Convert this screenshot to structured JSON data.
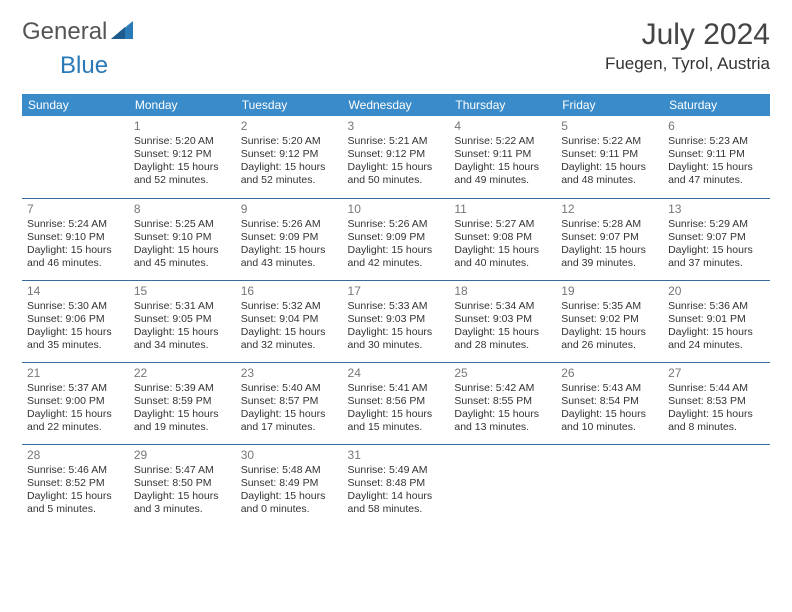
{
  "logo": {
    "text1": "General",
    "text2": "Blue"
  },
  "header": {
    "title": "July 2024",
    "location": "Fuegen, Tyrol, Austria"
  },
  "colors": {
    "header_bg": "#3a8bc9",
    "header_text": "#ffffff",
    "row_border": "#3a6a9e",
    "title_color": "#444444",
    "body_text": "#333333",
    "daynum_color": "#777777",
    "logo_g": "#555555",
    "logo_b": "#2a7ab8"
  },
  "typography": {
    "title_fontsize": 30,
    "location_fontsize": 17,
    "dayhead_fontsize": 12,
    "cell_fontsize": 10.5,
    "daynum_fontsize": 12,
    "font_family": "Arial"
  },
  "dayHeaders": [
    "Sunday",
    "Monday",
    "Tuesday",
    "Wednesday",
    "Thursday",
    "Friday",
    "Saturday"
  ],
  "weeks": [
    [
      null,
      {
        "n": "1",
        "sr": "Sunrise: 5:20 AM",
        "ss": "Sunset: 9:12 PM",
        "dl": "Daylight: 15 hours and 52 minutes."
      },
      {
        "n": "2",
        "sr": "Sunrise: 5:20 AM",
        "ss": "Sunset: 9:12 PM",
        "dl": "Daylight: 15 hours and 52 minutes."
      },
      {
        "n": "3",
        "sr": "Sunrise: 5:21 AM",
        "ss": "Sunset: 9:12 PM",
        "dl": "Daylight: 15 hours and 50 minutes."
      },
      {
        "n": "4",
        "sr": "Sunrise: 5:22 AM",
        "ss": "Sunset: 9:11 PM",
        "dl": "Daylight: 15 hours and 49 minutes."
      },
      {
        "n": "5",
        "sr": "Sunrise: 5:22 AM",
        "ss": "Sunset: 9:11 PM",
        "dl": "Daylight: 15 hours and 48 minutes."
      },
      {
        "n": "6",
        "sr": "Sunrise: 5:23 AM",
        "ss": "Sunset: 9:11 PM",
        "dl": "Daylight: 15 hours and 47 minutes."
      }
    ],
    [
      {
        "n": "7",
        "sr": "Sunrise: 5:24 AM",
        "ss": "Sunset: 9:10 PM",
        "dl": "Daylight: 15 hours and 46 minutes."
      },
      {
        "n": "8",
        "sr": "Sunrise: 5:25 AM",
        "ss": "Sunset: 9:10 PM",
        "dl": "Daylight: 15 hours and 45 minutes."
      },
      {
        "n": "9",
        "sr": "Sunrise: 5:26 AM",
        "ss": "Sunset: 9:09 PM",
        "dl": "Daylight: 15 hours and 43 minutes."
      },
      {
        "n": "10",
        "sr": "Sunrise: 5:26 AM",
        "ss": "Sunset: 9:09 PM",
        "dl": "Daylight: 15 hours and 42 minutes."
      },
      {
        "n": "11",
        "sr": "Sunrise: 5:27 AM",
        "ss": "Sunset: 9:08 PM",
        "dl": "Daylight: 15 hours and 40 minutes."
      },
      {
        "n": "12",
        "sr": "Sunrise: 5:28 AM",
        "ss": "Sunset: 9:07 PM",
        "dl": "Daylight: 15 hours and 39 minutes."
      },
      {
        "n": "13",
        "sr": "Sunrise: 5:29 AM",
        "ss": "Sunset: 9:07 PM",
        "dl": "Daylight: 15 hours and 37 minutes."
      }
    ],
    [
      {
        "n": "14",
        "sr": "Sunrise: 5:30 AM",
        "ss": "Sunset: 9:06 PM",
        "dl": "Daylight: 15 hours and 35 minutes."
      },
      {
        "n": "15",
        "sr": "Sunrise: 5:31 AM",
        "ss": "Sunset: 9:05 PM",
        "dl": "Daylight: 15 hours and 34 minutes."
      },
      {
        "n": "16",
        "sr": "Sunrise: 5:32 AM",
        "ss": "Sunset: 9:04 PM",
        "dl": "Daylight: 15 hours and 32 minutes."
      },
      {
        "n": "17",
        "sr": "Sunrise: 5:33 AM",
        "ss": "Sunset: 9:03 PM",
        "dl": "Daylight: 15 hours and 30 minutes."
      },
      {
        "n": "18",
        "sr": "Sunrise: 5:34 AM",
        "ss": "Sunset: 9:03 PM",
        "dl": "Daylight: 15 hours and 28 minutes."
      },
      {
        "n": "19",
        "sr": "Sunrise: 5:35 AM",
        "ss": "Sunset: 9:02 PM",
        "dl": "Daylight: 15 hours and 26 minutes."
      },
      {
        "n": "20",
        "sr": "Sunrise: 5:36 AM",
        "ss": "Sunset: 9:01 PM",
        "dl": "Daylight: 15 hours and 24 minutes."
      }
    ],
    [
      {
        "n": "21",
        "sr": "Sunrise: 5:37 AM",
        "ss": "Sunset: 9:00 PM",
        "dl": "Daylight: 15 hours and 22 minutes."
      },
      {
        "n": "22",
        "sr": "Sunrise: 5:39 AM",
        "ss": "Sunset: 8:59 PM",
        "dl": "Daylight: 15 hours and 19 minutes."
      },
      {
        "n": "23",
        "sr": "Sunrise: 5:40 AM",
        "ss": "Sunset: 8:57 PM",
        "dl": "Daylight: 15 hours and 17 minutes."
      },
      {
        "n": "24",
        "sr": "Sunrise: 5:41 AM",
        "ss": "Sunset: 8:56 PM",
        "dl": "Daylight: 15 hours and 15 minutes."
      },
      {
        "n": "25",
        "sr": "Sunrise: 5:42 AM",
        "ss": "Sunset: 8:55 PM",
        "dl": "Daylight: 15 hours and 13 minutes."
      },
      {
        "n": "26",
        "sr": "Sunrise: 5:43 AM",
        "ss": "Sunset: 8:54 PM",
        "dl": "Daylight: 15 hours and 10 minutes."
      },
      {
        "n": "27",
        "sr": "Sunrise: 5:44 AM",
        "ss": "Sunset: 8:53 PM",
        "dl": "Daylight: 15 hours and 8 minutes."
      }
    ],
    [
      {
        "n": "28",
        "sr": "Sunrise: 5:46 AM",
        "ss": "Sunset: 8:52 PM",
        "dl": "Daylight: 15 hours and 5 minutes."
      },
      {
        "n": "29",
        "sr": "Sunrise: 5:47 AM",
        "ss": "Sunset: 8:50 PM",
        "dl": "Daylight: 15 hours and 3 minutes."
      },
      {
        "n": "30",
        "sr": "Sunrise: 5:48 AM",
        "ss": "Sunset: 8:49 PM",
        "dl": "Daylight: 15 hours and 0 minutes."
      },
      {
        "n": "31",
        "sr": "Sunrise: 5:49 AM",
        "ss": "Sunset: 8:48 PM",
        "dl": "Daylight: 14 hours and 58 minutes."
      },
      null,
      null,
      null
    ]
  ]
}
